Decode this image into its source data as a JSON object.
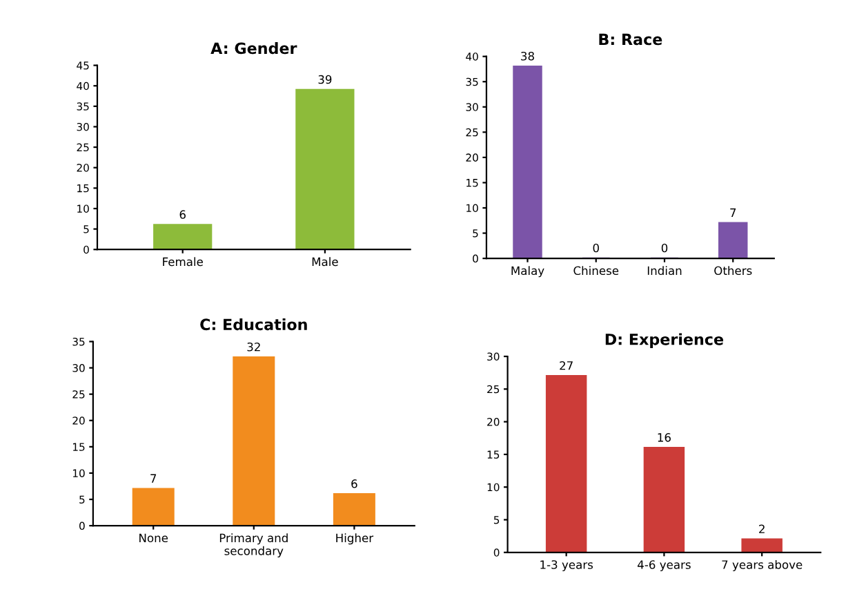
{
  "chart_data": [
    {
      "type": "bar",
      "title": "A: Gender",
      "categories": [
        "Female",
        "Male"
      ],
      "values": [
        6,
        39
      ],
      "color": "#8dbb3a",
      "ylim": [
        0,
        45
      ],
      "yticks": [
        0,
        5,
        10,
        15,
        20,
        25,
        30,
        35,
        40,
        45
      ],
      "data_labels": true,
      "grid": false,
      "legend": false
    },
    {
      "type": "bar",
      "title": "B: Race",
      "categories": [
        "Malay",
        "Chinese",
        "Indian",
        "Others"
      ],
      "values": [
        38,
        0,
        0,
        7
      ],
      "color": "#7b54a8",
      "ylim": [
        0,
        40
      ],
      "yticks": [
        0,
        5,
        10,
        15,
        20,
        25,
        30,
        35,
        40
      ],
      "data_labels": true,
      "grid": false,
      "legend": false
    },
    {
      "type": "bar",
      "title": "C: Education",
      "categories": [
        "None",
        "Primary and\nsecondary",
        "Higher"
      ],
      "values": [
        7,
        32,
        6
      ],
      "color": "#f28c1e",
      "ylim": [
        0,
        35
      ],
      "yticks": [
        0,
        5,
        10,
        15,
        20,
        25,
        30,
        35
      ],
      "data_labels": true,
      "grid": false,
      "legend": false
    },
    {
      "type": "bar",
      "title": "D: Experience",
      "categories": [
        "1-3 years",
        "4-6 years",
        "7 years above"
      ],
      "values": [
        27,
        16,
        2
      ],
      "color": "#cc3c38",
      "ylim": [
        0,
        30
      ],
      "yticks": [
        0,
        5,
        10,
        15,
        20,
        25,
        30
      ],
      "data_labels": true,
      "grid": false,
      "legend": false
    }
  ]
}
